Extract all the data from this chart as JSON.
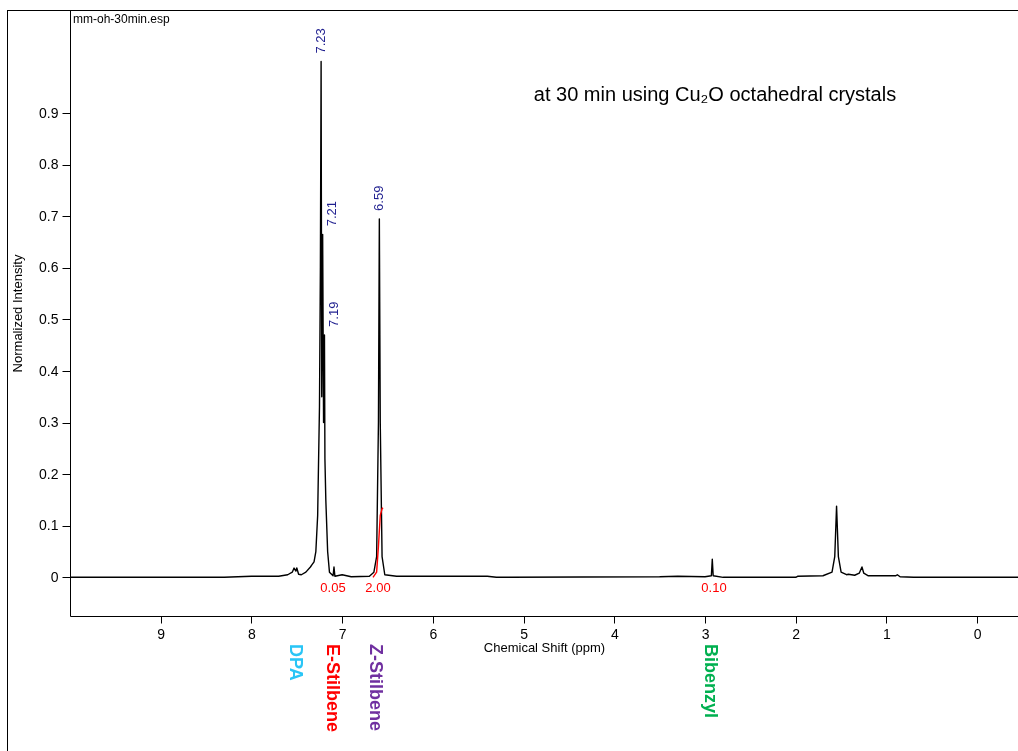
{
  "chart_data": {
    "type": "line",
    "title": "at 30 min using Cu₂O octahedral crystals",
    "xlabel": "Chemical Shift (ppm)",
    "ylabel": "Normalized Intensity",
    "xlim": [
      10.0,
      -0.45
    ],
    "ylim": [
      -0.075,
      1.1
    ],
    "xticks": [
      9,
      8,
      7,
      6,
      5,
      4,
      3,
      2,
      1,
      0
    ],
    "yticks": [
      0,
      0.1,
      0.2,
      0.3,
      0.4,
      0.5,
      0.6,
      0.7,
      0.8,
      0.9
    ],
    "grid": false,
    "marker": "none",
    "line_style": "solid",
    "series": [
      {
        "color": "#000000",
        "x": [
          10.0,
          8.3,
          8.0,
          7.7,
          7.6,
          7.55,
          7.53,
          7.51,
          7.5,
          7.48,
          7.45,
          7.4,
          7.35,
          7.33,
          7.31,
          7.29,
          7.27,
          7.25,
          7.24,
          7.232,
          7.225,
          7.215,
          7.205,
          7.195,
          7.19,
          7.18,
          7.16,
          7.14,
          7.1,
          7.09,
          7.08,
          7.0,
          6.9,
          6.7,
          6.65,
          6.62,
          6.6,
          6.59,
          6.58,
          6.56,
          6.53,
          6.4,
          5.4,
          5.3,
          3.5,
          3.3,
          3.0,
          2.93,
          2.92,
          2.91,
          2.8,
          2.0,
          1.98,
          1.7,
          1.6,
          1.57,
          1.55,
          1.53,
          1.5,
          1.44,
          1.42,
          1.35,
          1.3,
          1.27,
          1.25,
          1.2,
          0.9,
          0.88,
          0.85,
          0.7,
          -0.45
        ],
        "values": [
          0,
          0,
          0.002,
          0.002,
          0.005,
          0.01,
          0.018,
          0.012,
          0.018,
          0.006,
          0.005,
          0.01,
          0.02,
          0.025,
          0.03,
          0.05,
          0.12,
          0.33,
          0.6,
          1.0,
          0.35,
          0.665,
          0.3,
          0.47,
          0.23,
          0.15,
          0.05,
          0.01,
          0.003,
          0.02,
          0.002,
          0.005,
          0.001,
          0.002,
          0.01,
          0.04,
          0.3,
          0.695,
          0.3,
          0.04,
          0.005,
          0.002,
          0.002,
          0,
          0.001,
          0.002,
          0.001,
          0.003,
          0.035,
          0.003,
          0,
          0,
          0.002,
          0.003,
          0.01,
          0.04,
          0.138,
          0.04,
          0.01,
          0.005,
          0.006,
          0.004,
          0.008,
          0.02,
          0.008,
          0.003,
          0.003,
          0.005,
          0.001,
          0,
          0
        ]
      },
      {
        "color": "#ff0000",
        "x": [
          6.66,
          6.62,
          6.6,
          6.58,
          6.56,
          6.55
        ],
        "values": [
          0,
          0.01,
          0.06,
          0.12,
          0.133,
          0.135
        ]
      }
    ],
    "annotations": [
      "mm-oh-30min.esp",
      {
        "text": "7.23",
        "x": 7.23,
        "y": 1.0
      },
      {
        "text": "7.21",
        "x": 7.21,
        "y": 0.665
      },
      {
        "text": "7.19",
        "x": 7.19,
        "y": 0.47
      },
      {
        "text": "6.59",
        "x": 6.59,
        "y": 0.695
      },
      "0.05",
      "2.00",
      "0.10",
      "DPA",
      "E-Stilbene",
      "Z-Stilbene",
      "Bibenzyl"
    ]
  }
}
